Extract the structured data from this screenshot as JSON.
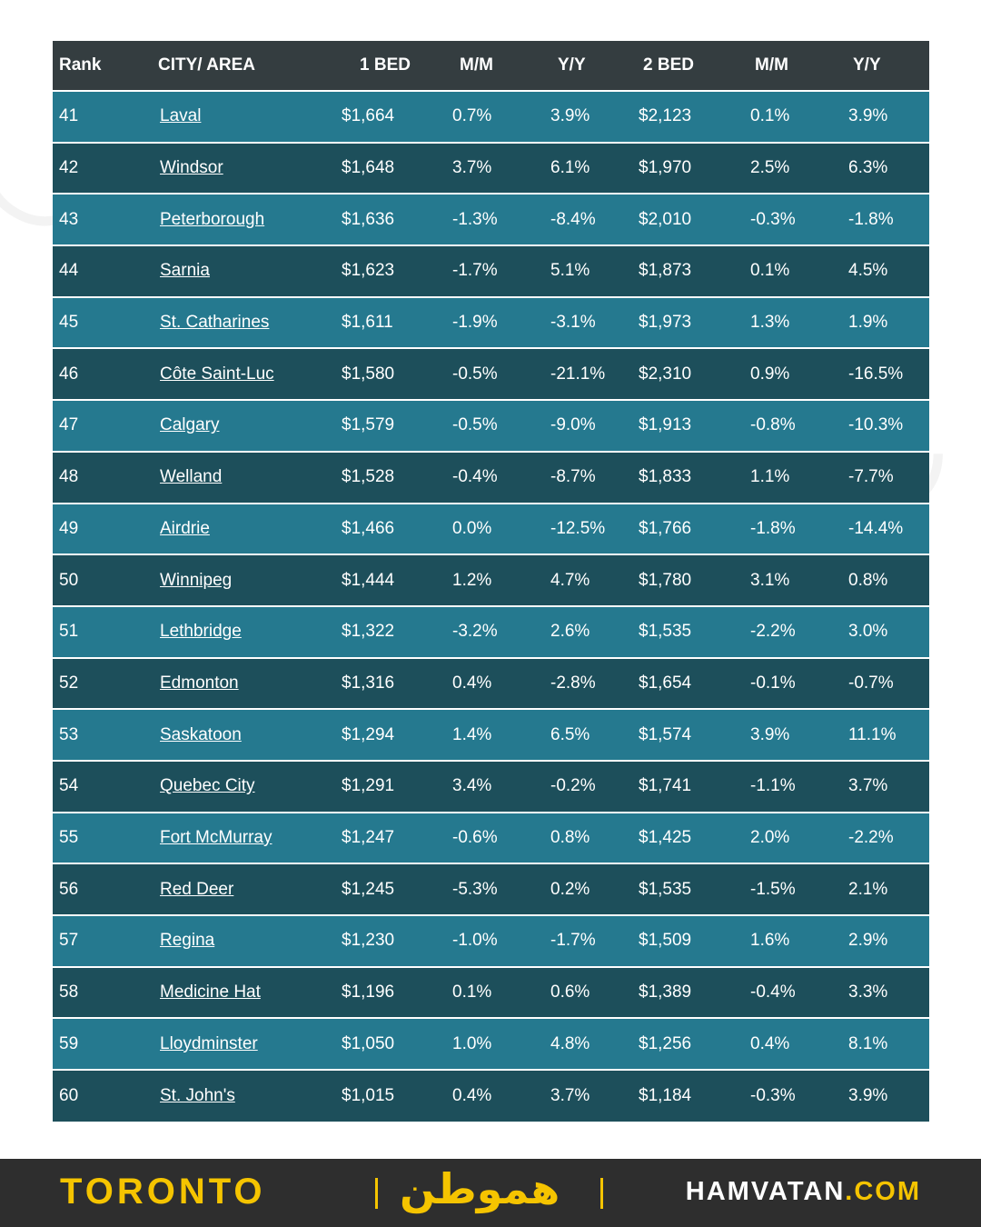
{
  "table": {
    "headers": [
      "Rank",
      "CITY/ AREA",
      "1 BED",
      "M/M",
      "Y/Y",
      "2 BED",
      "M/M",
      "Y/Y"
    ],
    "rows": [
      [
        "41",
        "Laval",
        "$1,664",
        "0.7%",
        "3.9%",
        "$2,123",
        "0.1%",
        "3.9%"
      ],
      [
        "42",
        "Windsor",
        "$1,648",
        "3.7%",
        "6.1%",
        "$1,970",
        "2.5%",
        "6.3%"
      ],
      [
        "43",
        "Peterborough",
        "$1,636",
        "-1.3%",
        "-8.4%",
        "$2,010",
        "-0.3%",
        "-1.8%"
      ],
      [
        "44",
        "Sarnia",
        "$1,623",
        "-1.7%",
        "5.1%",
        "$1,873",
        "0.1%",
        "4.5%"
      ],
      [
        "45",
        "St. Catharines",
        "$1,611",
        "-1.9%",
        "-3.1%",
        "$1,973",
        "1.3%",
        "1.9%"
      ],
      [
        "46",
        "Côte Saint-Luc",
        "$1,580",
        "-0.5%",
        "-21.1%",
        "$2,310",
        "0.9%",
        "-16.5%"
      ],
      [
        "47",
        "Calgary",
        "$1,579",
        "-0.5%",
        "-9.0%",
        "$1,913",
        "-0.8%",
        "-10.3%"
      ],
      [
        "48",
        "Welland",
        "$1,528",
        "-0.4%",
        "-8.7%",
        "$1,833",
        "1.1%",
        "-7.7%"
      ],
      [
        "49",
        "Airdrie",
        "$1,466",
        "0.0%",
        "-12.5%",
        "$1,766",
        "-1.8%",
        "-14.4%"
      ],
      [
        "50",
        "Winnipeg",
        "$1,444",
        "1.2%",
        "4.7%",
        "$1,780",
        "3.1%",
        "0.8%"
      ],
      [
        "51",
        "Lethbridge",
        "$1,322",
        "-3.2%",
        "2.6%",
        "$1,535",
        "-2.2%",
        "3.0%"
      ],
      [
        "52",
        "Edmonton",
        "$1,316",
        "0.4%",
        "-2.8%",
        "$1,654",
        "-0.1%",
        "-0.7%"
      ],
      [
        "53",
        "Saskatoon",
        "$1,294",
        "1.4%",
        "6.5%",
        "$1,574",
        "3.9%",
        "11.1%"
      ],
      [
        "54",
        "Quebec City",
        "$1,291",
        "3.4%",
        "-0.2%",
        "$1,741",
        "-1.1%",
        "3.7%"
      ],
      [
        "55",
        "Fort McMurray",
        "$1,247",
        "-0.6%",
        "0.8%",
        "$1,425",
        "2.0%",
        "-2.2%"
      ],
      [
        "56",
        "Red Deer",
        "$1,245",
        "-5.3%",
        "0.2%",
        "$1,535",
        "-1.5%",
        "2.1%"
      ],
      [
        "57",
        "Regina",
        "$1,230",
        "-1.0%",
        "-1.7%",
        "$1,509",
        "1.6%",
        "2.9%"
      ],
      [
        "58",
        "Medicine Hat",
        "$1,196",
        "0.1%",
        "0.6%",
        "$1,389",
        "-0.4%",
        "3.3%"
      ],
      [
        "59",
        "Lloydminster",
        "$1,050",
        "1.0%",
        "4.8%",
        "$1,256",
        "0.4%",
        "8.1%"
      ],
      [
        "60",
        "St. John's",
        "$1,015",
        "0.4%",
        "3.7%",
        "$1,184",
        "-0.3%",
        "3.9%"
      ]
    ]
  },
  "footer": {
    "city": "TORONTO",
    "logo": "هموطن",
    "site_main": "HAMVATAN",
    "site_tld": ".COM"
  },
  "colors": {
    "header_bg": "#343d40",
    "row_light": "#25798f",
    "row_dark": "#1d4f5b",
    "footer_bg": "#2e2e2e",
    "accent_yellow": "#f5c400"
  }
}
